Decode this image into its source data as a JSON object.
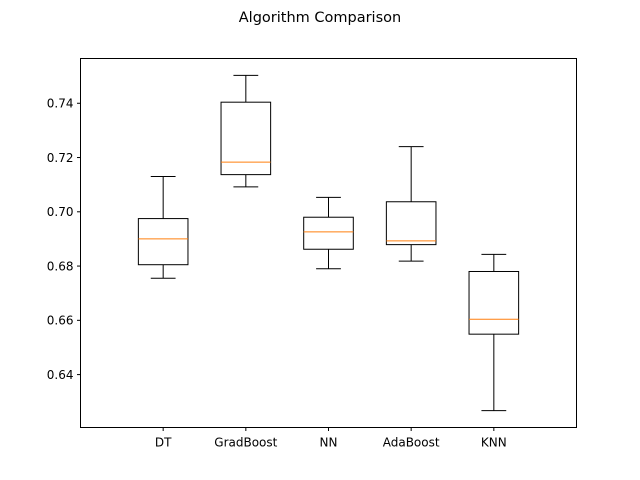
{
  "chart_data": {
    "type": "box",
    "title": "Algorithm Comparison",
    "xlabel": "",
    "ylabel": "",
    "ylim": [
      0.6205,
      0.7565
    ],
    "yticks": [
      0.64,
      0.66,
      0.68,
      0.7,
      0.72,
      0.74
    ],
    "ytick_labels": [
      "0.64",
      "0.66",
      "0.68",
      "0.70",
      "0.72",
      "0.74"
    ],
    "grid": false,
    "categories": [
      "DT",
      "GradBoost",
      "NN",
      "AdaBoost",
      "KNN"
    ],
    "boxes": [
      {
        "label": "DT",
        "whislo": 0.6755,
        "q1": 0.6805,
        "med": 0.69,
        "q3": 0.6975,
        "whishi": 0.713
      },
      {
        "label": "GradBoost",
        "whislo": 0.7092,
        "q1": 0.7137,
        "med": 0.7183,
        "q3": 0.7404,
        "whishi": 0.7503
      },
      {
        "label": "NN",
        "whislo": 0.679,
        "q1": 0.6862,
        "med": 0.6926,
        "q3": 0.698,
        "whishi": 0.7053
      },
      {
        "label": "AdaBoost",
        "whislo": 0.6818,
        "q1": 0.6879,
        "med": 0.6893,
        "q3": 0.7037,
        "whishi": 0.724
      },
      {
        "label": "KNN",
        "whislo": 0.6267,
        "q1": 0.6549,
        "med": 0.6604,
        "q3": 0.678,
        "whishi": 0.6843
      }
    ],
    "colors": {
      "box": "#000000",
      "median": "#ff7f0e",
      "axes": "#000000"
    }
  }
}
